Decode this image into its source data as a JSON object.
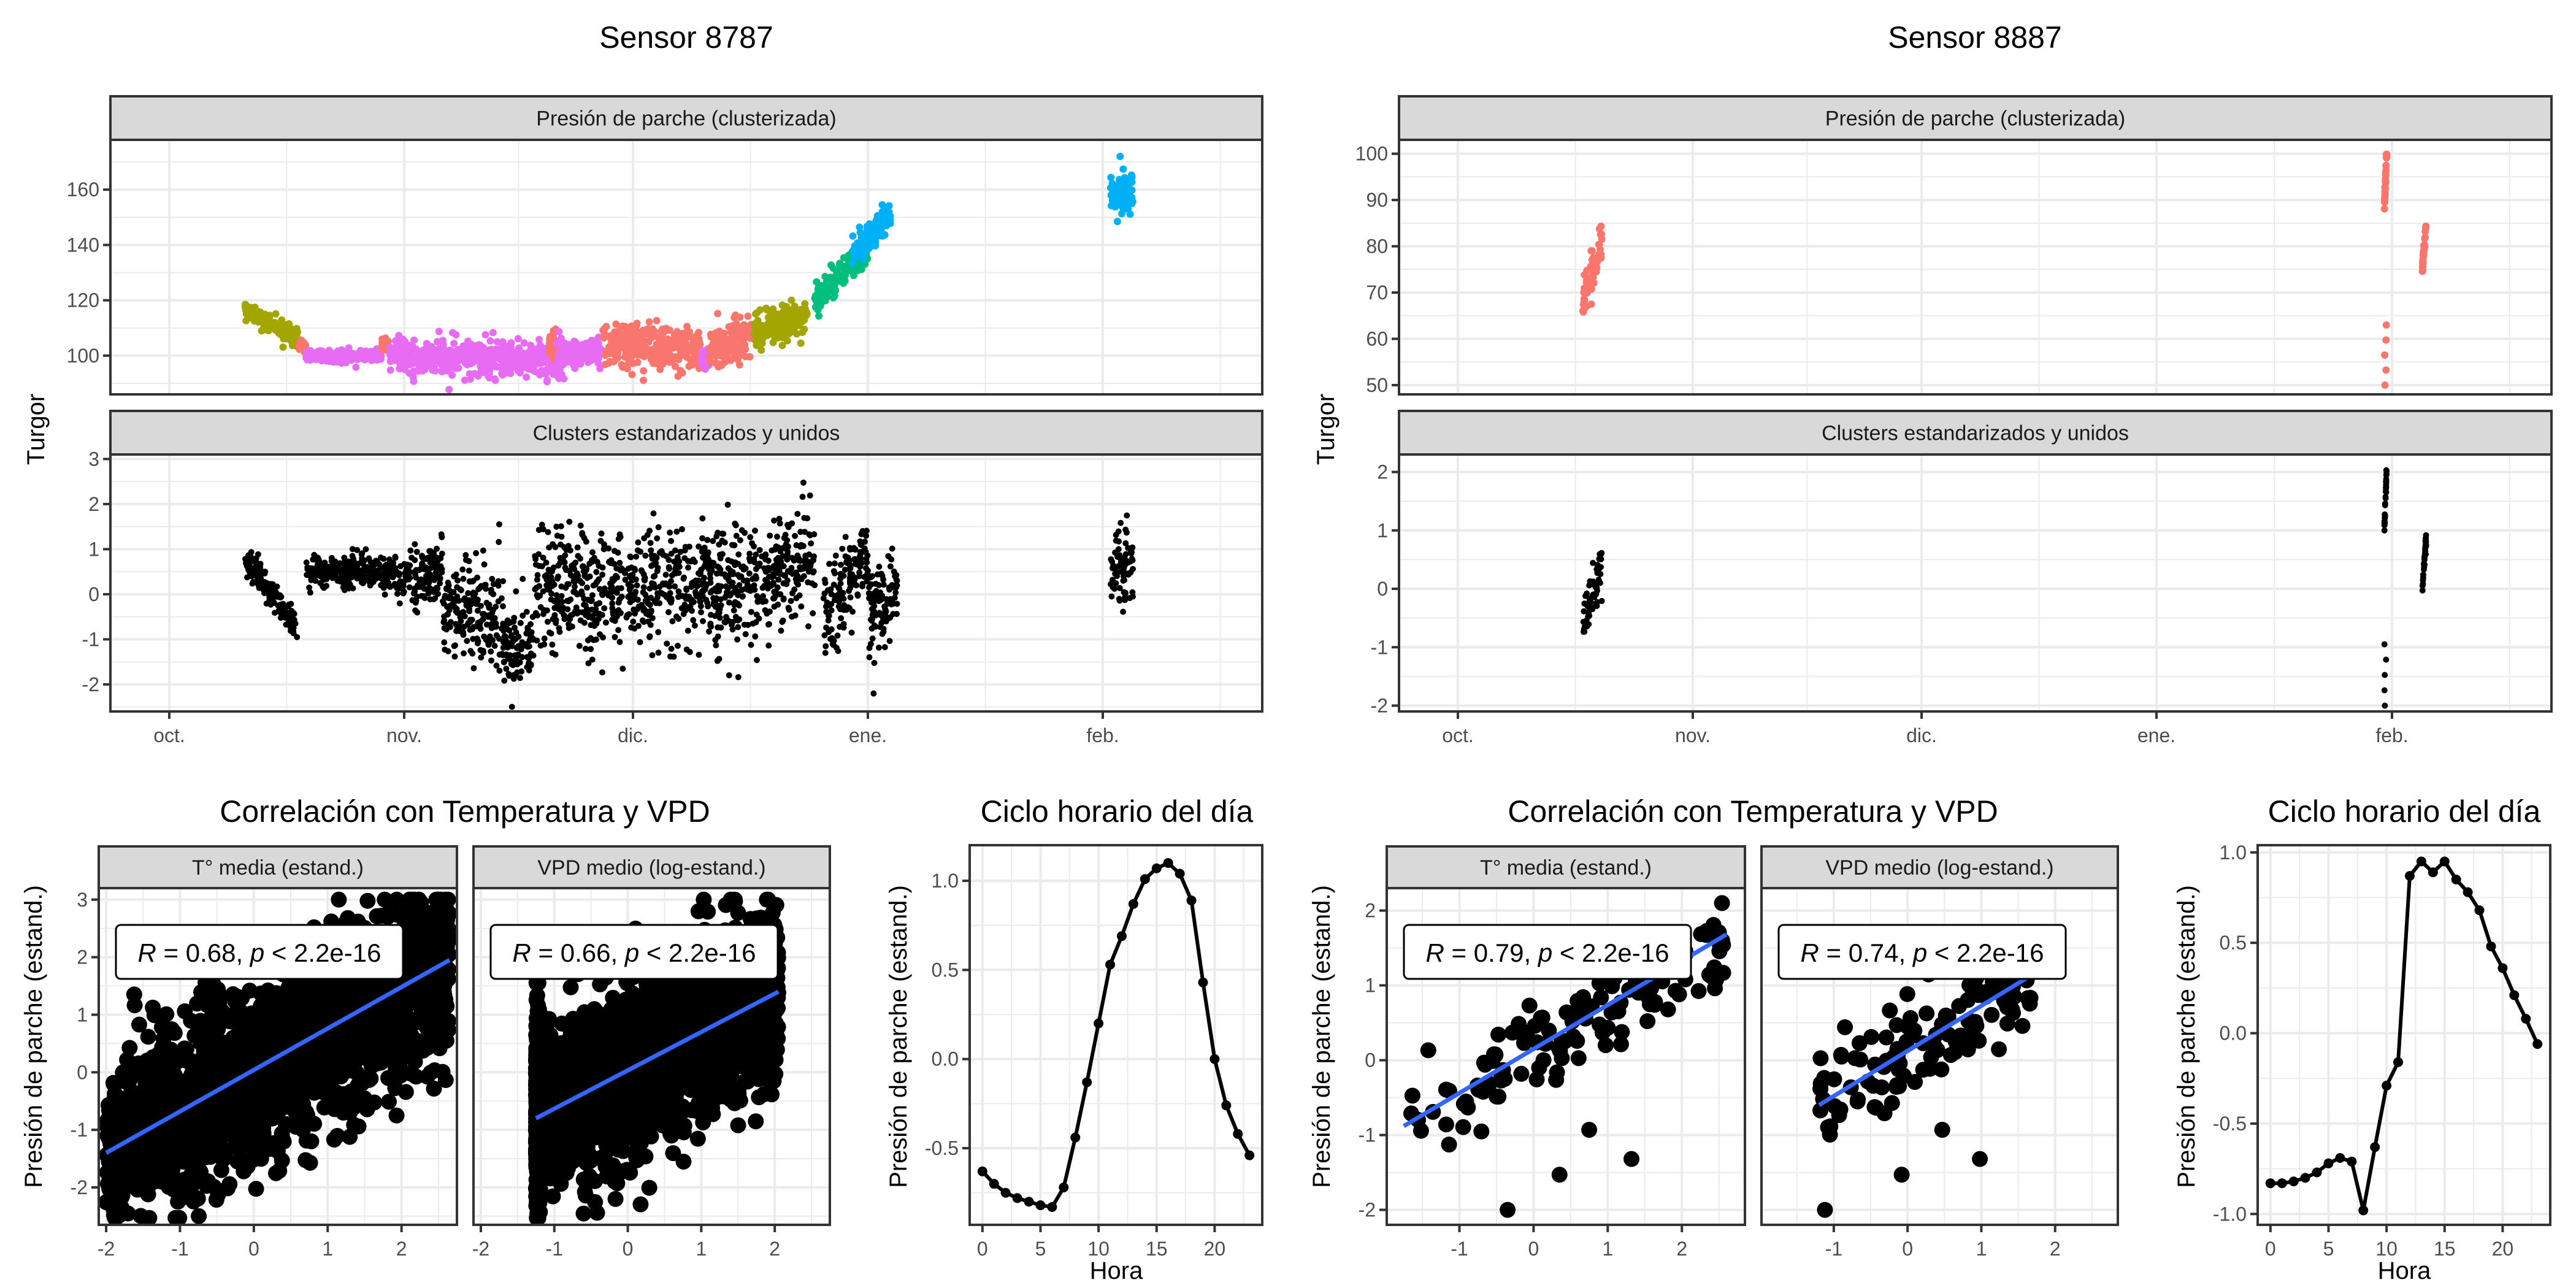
{
  "colors": {
    "cluster_1": "#F8766D",
    "cluster_2": "#A3A500",
    "cluster_3": "#00BF7D",
    "cluster_4": "#00B0F6",
    "cluster_5": "#E76BF3",
    "standardized_points": "#000000",
    "fit_line": "#3366FF",
    "strip_fill": "#D9D9D9"
  },
  "sensors": [
    {
      "title": "Sensor 8787",
      "timeseries": {
        "y_label": "Turgor",
        "x_ticks": [
          "oct.",
          "nov.",
          "dic.",
          "ene.",
          "feb."
        ],
        "panels": [
          {
            "strip": "Presión de parche (clusterizada)",
            "type": "scatter",
            "x_unit": "days since 1 oct.",
            "xlim": [
              -7,
              140
            ],
            "ylim": [
              86,
              178
            ],
            "y_ticks": [
              "100",
              "120",
              "140",
              "160"
            ],
            "y_tick_values": [
              100,
              120,
              140,
              160
            ],
            "segments": [
              {
                "cluster": "cluster_2",
                "x": [
                  10,
                  17
                ],
                "y_start": 117,
                "y_end": 106,
                "spread": 3
              },
              {
                "cluster": "cluster_1",
                "x": [
                  17,
                  18
                ],
                "y_start": 104,
                "y_end": 103,
                "spread": 2
              },
              {
                "cluster": "cluster_5",
                "x": [
                  18,
                  28
                ],
                "y_start": 100,
                "y_end": 100,
                "spread": 2
              },
              {
                "cluster": "cluster_1",
                "x": [
                  28,
                  29
                ],
                "y_start": 104,
                "y_end": 104,
                "spread": 2
              },
              {
                "cluster": "cluster_5",
                "x": [
                  29,
                  52
                ],
                "y_start": 100,
                "y_end": 98,
                "spread": 6
              },
              {
                "cluster": "cluster_1",
                "x": [
                  50,
                  51
                ],
                "y_start": 104,
                "y_end": 104,
                "spread": 5
              },
              {
                "cluster": "cluster_5",
                "x": [
                  51,
                  57
                ],
                "y_start": 100,
                "y_end": 102,
                "spread": 5
              },
              {
                "cluster": "cluster_1",
                "x": [
                  57,
                  70
                ],
                "y_start": 104,
                "y_end": 103,
                "spread": 8
              },
              {
                "cluster": "cluster_5",
                "x": [
                  70,
                  71
                ],
                "y_start": 99,
                "y_end": 99,
                "spread": 4
              },
              {
                "cluster": "cluster_1",
                "x": [
                  71,
                  77
                ],
                "y_start": 103,
                "y_end": 108,
                "spread": 7
              },
              {
                "cluster": "cluster_2",
                "x": [
                  77,
                  84
                ],
                "y_start": 108,
                "y_end": 115,
                "spread": 6
              },
              {
                "cluster": "cluster_3",
                "x": [
                  85,
                  92
                ],
                "y_start": 120,
                "y_end": 140,
                "spread": 5
              },
              {
                "cluster": "cluster_4",
                "x": [
                  90,
                  95
                ],
                "y_start": 138,
                "y_end": 150,
                "spread": 6
              },
              {
                "cluster": "cluster_4",
                "x": [
                  124,
                  127
                ],
                "y_start": 158,
                "y_end": 160,
                "spread": 7
              }
            ]
          },
          {
            "strip": "Clusters estandarizados y unidos",
            "type": "scatter",
            "x_unit": "days since 1 oct.",
            "xlim": [
              -7,
              140
            ],
            "ylim": [
              -2.6,
              3.1
            ],
            "y_ticks": [
              "-2",
              "-1",
              "0",
              "1",
              "2",
              "3"
            ],
            "y_tick_values": [
              -2,
              -1,
              0,
              1,
              2,
              3
            ],
            "segments": [
              {
                "cluster": "standardized_points",
                "x": [
                  10,
                  17
                ],
                "y_start": 0.8,
                "y_end": -0.8,
                "spread": 0.35
              },
              {
                "cluster": "standardized_points",
                "x": [
                  18,
                  30
                ],
                "y_start": 0.5,
                "y_end": 0.5,
                "spread": 0.35
              },
              {
                "cluster": "standardized_points",
                "x": [
                  30,
                  36
                ],
                "y_start": 0.3,
                "y_end": 0.5,
                "spread": 0.6
              },
              {
                "cluster": "standardized_points",
                "x": [
                  36,
                  44
                ],
                "y_start": -0.4,
                "y_end": -0.4,
                "spread": 1.2
              },
              {
                "cluster": "standardized_points",
                "x": [
                  44,
                  48
                ],
                "y_start": -1.3,
                "y_end": -1.0,
                "spread": 0.8
              },
              {
                "cluster": "standardized_points",
                "x": [
                  48,
                  78
                ],
                "y_start": 0.0,
                "y_end": 0.2,
                "spread": 1.3
              },
              {
                "cluster": "standardized_points",
                "x": [
                  78,
                  85
                ],
                "y_start": 0.3,
                "y_end": 0.8,
                "spread": 1.2
              },
              {
                "cluster": "standardized_points",
                "x": [
                  86,
                  92
                ],
                "y_start": -0.6,
                "y_end": 0.8,
                "spread": 1.0
              },
              {
                "cluster": "standardized_points",
                "x": [
                  92,
                  96
                ],
                "y_start": -0.6,
                "y_end": 0.0,
                "spread": 1.0
              },
              {
                "cluster": "standardized_points",
                "x": [
                  124,
                  127
                ],
                "y_start": 0.7,
                "y_end": 0.6,
                "spread": 0.8
              }
            ]
          }
        ]
      },
      "correlation": {
        "title": "Correlación con Temperatura y VPD",
        "y_label": "Presión de parche (estand.)",
        "ylim": [
          -2.65,
          3.2
        ],
        "y_ticks": [
          "-2",
          "-1",
          "0",
          "1",
          "2",
          "3"
        ],
        "y_tick_values": [
          -2,
          -1,
          0,
          1,
          2,
          3
        ],
        "xlim": [
          -2.1,
          2.75
        ],
        "x_ticks": [
          "-2",
          "-1",
          "0",
          "1",
          "2"
        ],
        "x_tick_values": [
          -2,
          -1,
          0,
          1,
          2
        ],
        "facets": [
          {
            "strip": "T° media (estand.)",
            "R": "0.68",
            "p": "2.2e-16",
            "fit": {
              "x": [
                -2.0,
                2.65
              ],
              "y": [
                -1.4,
                1.95
              ]
            },
            "x_range": [
              -2.0,
              2.65
            ],
            "n": 2200,
            "slope": 0.68,
            "noise": 0.75,
            "left_wall": null
          },
          {
            "strip": "VPD medio (log-estand.)",
            "R": "0.66",
            "p": "2.2e-16",
            "fit": {
              "x": [
                -1.25,
                2.05
              ],
              "y": [
                -0.8,
                1.4
              ]
            },
            "x_range": [
              -1.25,
              2.05
            ],
            "n": 2200,
            "slope": 0.66,
            "noise": 0.75,
            "left_wall": -1.25
          }
        ]
      },
      "hourly": {
        "title": "Ciclo horario del día",
        "x_label": "Hora",
        "y_label": "Presión de parche (estand.)",
        "xlim": [
          -1.1,
          24.1
        ],
        "ylim": [
          -0.93,
          1.2
        ],
        "x_ticks": [
          "0",
          "5",
          "10",
          "15",
          "20"
        ],
        "x_tick_values": [
          0,
          5,
          10,
          15,
          20
        ],
        "y_ticks": [
          "-0.5",
          "0.0",
          "0.5",
          "1.0"
        ],
        "y_tick_values": [
          -0.5,
          0.0,
          0.5,
          1.0
        ],
        "hours": [
          0,
          1,
          2,
          3,
          4,
          5,
          6,
          7,
          8,
          9,
          10,
          11,
          12,
          13,
          14,
          15,
          16,
          17,
          18,
          19,
          20,
          21,
          22,
          23
        ],
        "values": [
          -0.63,
          -0.7,
          -0.75,
          -0.78,
          -0.8,
          -0.82,
          -0.83,
          -0.72,
          -0.44,
          -0.13,
          0.2,
          0.53,
          0.69,
          0.87,
          1.01,
          1.07,
          1.1,
          1.04,
          0.89,
          0.43,
          0.0,
          -0.26,
          -0.42,
          -0.54
        ]
      }
    },
    {
      "title": "Sensor 8887",
      "timeseries": {
        "y_label": "Turgor",
        "x_ticks": [
          "oct.",
          "nov.",
          "dic.",
          "ene.",
          "feb."
        ],
        "panels": [
          {
            "strip": "Presión de parche (clusterizada)",
            "type": "scatter",
            "x_unit": "days since 1 oct.",
            "xlim": [
              -7,
              140
            ],
            "ylim": [
              48,
              103
            ],
            "y_ticks": [
              "50",
              "60",
              "70",
              "80",
              "90",
              "100"
            ],
            "y_tick_values": [
              50,
              60,
              70,
              80,
              90,
              100
            ],
            "segments": [
              {
                "cluster": "cluster_1",
                "x": [
                  16.5,
                  19
                ],
                "y_start": 68,
                "y_end": 80,
                "spread": 5
              },
              {
                "cluster": "cluster_1",
                "x": [
                  122,
                  122.3
                ],
                "y_start": 89,
                "y_end": 100,
                "spread": 1.5
              },
              {
                "cluster": "cluster_1",
                "x": [
                  122,
                  122.3
                ],
                "y_start": 50,
                "y_end": 63,
                "spread": 0.5,
                "sparse": true
              },
              {
                "cluster": "cluster_1",
                "x": [
                  127,
                  127.5
                ],
                "y_start": 75,
                "y_end": 85,
                "spread": 1.5
              }
            ]
          },
          {
            "strip": "Clusters estandarizados y unidos",
            "type": "scatter",
            "x_unit": "days since 1 oct.",
            "xlim": [
              -7,
              140
            ],
            "ylim": [
              -2.1,
              2.3
            ],
            "y_ticks": [
              "-2",
              "-1",
              "0",
              "1",
              "2"
            ],
            "y_tick_values": [
              -2,
              -1,
              0,
              1,
              2
            ],
            "segments": [
              {
                "cluster": "standardized_points",
                "x": [
                  16.5,
                  19
                ],
                "y_start": -0.6,
                "y_end": 0.5,
                "spread": 0.4
              },
              {
                "cluster": "standardized_points",
                "x": [
                  122,
                  122.3
                ],
                "y_start": 1.05,
                "y_end": 2.05,
                "spread": 0.15
              },
              {
                "cluster": "standardized_points",
                "x": [
                  122,
                  122.3
                ],
                "y_start": -2.0,
                "y_end": -0.95,
                "spread": 0.05,
                "sparse": true
              },
              {
                "cluster": "standardized_points",
                "x": [
                  127,
                  127.5
                ],
                "y_start": 0.0,
                "y_end": 0.85,
                "spread": 0.15
              }
            ]
          }
        ]
      },
      "correlation": {
        "title": "Correlación con Temperatura y VPD",
        "y_label": "Presión de parche (estand.)",
        "ylim": [
          -2.2,
          2.3
        ],
        "y_ticks": [
          "-2",
          "-1",
          "0",
          "1",
          "2"
        ],
        "y_tick_values": [
          -2,
          -1,
          0,
          1,
          2
        ],
        "xlim": [
          -1.98,
          2.85
        ],
        "x_ticks": [
          "-1",
          "0",
          "1",
          "2"
        ],
        "x_tick_values": [
          -1,
          0,
          1,
          2
        ],
        "facets": [
          {
            "strip": "T° media (estand.)",
            "R": "0.79",
            "p": "2.2e-16",
            "fit": {
              "x": [
                -1.75,
                2.6
              ],
              "y": [
                -0.88,
                1.68
              ]
            },
            "x_range": [
              -1.75,
              2.6
            ],
            "n": 130,
            "slope": 0.79,
            "noise": 0.3,
            "left_wall": null,
            "outliers": [
              [
                -0.35,
                -2.0
              ],
              [
                0.35,
                -1.53
              ],
              [
                1.32,
                -1.32
              ],
              [
                0.75,
                -0.93
              ]
            ]
          },
          {
            "strip": "VPD medio (log-estand.)",
            "R": "0.74",
            "p": "2.2e-16",
            "fit": {
              "x": [
                -1.2,
                1.95
              ],
              "y": [
                -0.6,
                1.3
              ]
            },
            "x_range": [
              -1.2,
              1.75
            ],
            "n": 130,
            "slope": 0.74,
            "noise": 0.35,
            "left_wall": null,
            "outliers": [
              [
                -1.12,
                -2.0
              ],
              [
                -0.08,
                -1.53
              ],
              [
                0.98,
                -1.32
              ],
              [
                0.47,
                -0.93
              ]
            ]
          }
        ]
      },
      "hourly": {
        "title": "Ciclo horario del día",
        "x_label": "Hora",
        "y_label": "Presión de parche (estand.)",
        "xlim": [
          -1.1,
          24.1
        ],
        "ylim": [
          -1.06,
          1.04
        ],
        "x_ticks": [
          "0",
          "5",
          "10",
          "15",
          "20"
        ],
        "x_tick_values": [
          0,
          5,
          10,
          15,
          20
        ],
        "y_ticks": [
          "-1.0",
          "-0.5",
          "0.0",
          "0.5",
          "1.0"
        ],
        "y_tick_values": [
          -1.0,
          -0.5,
          0.0,
          0.5,
          1.0
        ],
        "hours": [
          0,
          1,
          2,
          3,
          4,
          5,
          6,
          7,
          8,
          9,
          10,
          11,
          12,
          13,
          14,
          15,
          16,
          17,
          18,
          19,
          20,
          21,
          22,
          23
        ],
        "values": [
          -0.83,
          -0.83,
          -0.82,
          -0.8,
          -0.77,
          -0.72,
          -0.69,
          -0.71,
          -0.98,
          -0.63,
          -0.29,
          -0.16,
          0.87,
          0.95,
          0.89,
          0.95,
          0.85,
          0.78,
          0.68,
          0.48,
          0.36,
          0.21,
          0.08,
          -0.06
        ]
      }
    }
  ]
}
